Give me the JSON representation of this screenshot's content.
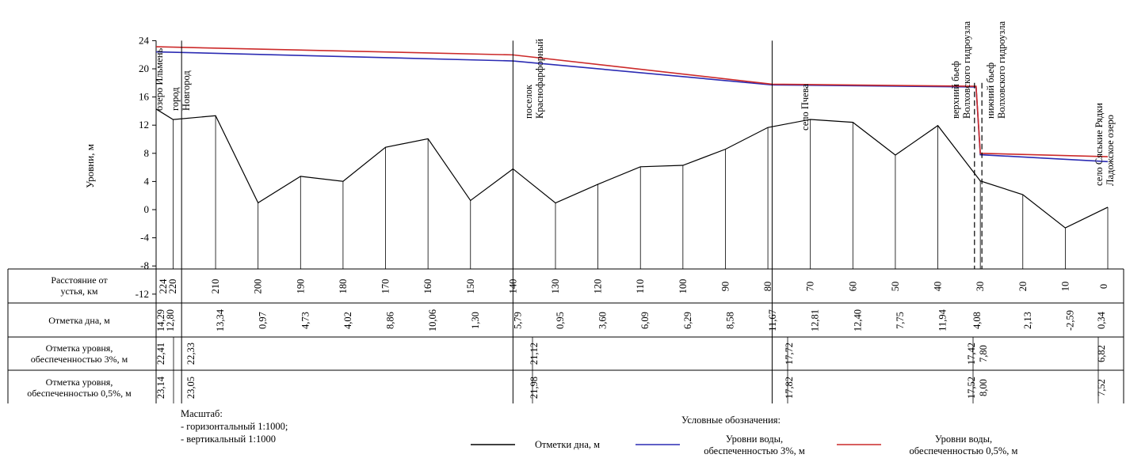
{
  "y_axis": {
    "label": "Уровни, м",
    "ticks": [
      "24",
      "20",
      "16",
      "12",
      "8",
      "4",
      "0",
      "-4",
      "-8",
      "-12"
    ]
  },
  "places": [
    {
      "lines": [
        "озеро Ильмень"
      ]
    },
    {
      "lines": [
        "город",
        "Новгород"
      ]
    },
    {
      "lines": [
        "поселок",
        "Краснофарфорный"
      ]
    },
    {
      "lines": [
        "село Пчева"
      ]
    },
    {
      "lines": [
        "верхний бьеф",
        "Волховского гидроузла"
      ]
    },
    {
      "lines": [
        "нижний бьеф",
        "Волховского гидроузла"
      ]
    },
    {
      "lines": [
        "село Сяськие Рядки",
        "Ладожское озеро"
      ]
    }
  ],
  "table": {
    "rows": [
      {
        "label": "Расстояние от\nустья, км"
      },
      {
        "label": "Отметка дна, м"
      },
      {
        "label": "Отметка уровня,\nобеспеченностью 3%, м"
      },
      {
        "label": "Отметка уровня,\nобеспеченностью 0,5%, м"
      }
    ],
    "distance_labels": [
      "224",
      "220",
      "210",
      "200",
      "190",
      "180",
      "170",
      "160",
      "150",
      "140",
      "130",
      "120",
      "110",
      "100",
      "90",
      "80",
      "70",
      "60",
      "50",
      "40",
      "30",
      "20",
      "10",
      "0"
    ],
    "bottom_labels": [
      "14,29",
      "12,80",
      "13,34",
      "0,97",
      "4,73",
      "4,02",
      "8,86",
      "10,06",
      "1,30",
      "5,79",
      "0,95",
      "3,60",
      "6,09",
      "6,29",
      "8,58",
      "11,67",
      "12,81",
      "12,40",
      "7,75",
      "11,94",
      "4,08",
      "2,13",
      "-2,59",
      "0,34"
    ],
    "level3_labels": [
      "22,41",
      "22,33",
      "21,12",
      "17,72",
      "17,42",
      "7,80",
      "6,82"
    ],
    "level05_labels": [
      "23,14",
      "23,05",
      "21,98",
      "17,82",
      "17,52",
      "8,00",
      "7,52"
    ]
  },
  "footer": {
    "scale_title": "Масштаб:",
    "scale_h": "- горизонтальный 1:1000;",
    "scale_v": "- вертикальный 1:1000",
    "legend_title": "Условные обозначения:",
    "legend": [
      {
        "label": "Отметки дна, м",
        "color": "#000000"
      },
      {
        "label": "Уровни воды,\nобеспеченностью 3%, м",
        "color": "#2b2bb3"
      },
      {
        "label": "Уровни воды,\nобеспеченностью 0,5%, м",
        "color": "#cc2a2a"
      }
    ]
  },
  "chart_data": {
    "type": "line",
    "xlabel": "",
    "ylabel": "Уровни, м",
    "ylim": [
      -12,
      24
    ],
    "x_reversed": true,
    "series": [
      {
        "name": "Отметки дна, м",
        "color": "#000000",
        "x": [
          224,
          220,
          210,
          200,
          190,
          180,
          170,
          160,
          150,
          140,
          130,
          120,
          110,
          100,
          90,
          80,
          70,
          60,
          50,
          40,
          30,
          20,
          10,
          0
        ],
        "values": [
          14.29,
          12.8,
          13.34,
          0.97,
          4.73,
          4.02,
          8.86,
          10.06,
          1.3,
          5.79,
          0.95,
          3.6,
          6.09,
          6.29,
          8.58,
          11.67,
          12.81,
          12.4,
          7.75,
          11.94,
          4.08,
          2.13,
          -2.59,
          0.34
        ]
      },
      {
        "name": "Уровни воды, обеспеченностью 3%, м",
        "color": "#2b2bb3",
        "x": [
          224,
          218,
          140,
          79,
          31,
          30,
          0
        ],
        "values": [
          22.41,
          22.33,
          21.12,
          17.72,
          17.42,
          7.8,
          6.82
        ]
      },
      {
        "name": "Уровни воды, обеспеченностью 0,5%, м",
        "color": "#cc2a2a",
        "x": [
          224,
          218,
          140,
          79,
          31,
          30,
          0
        ],
        "values": [
          23.14,
          23.05,
          21.98,
          17.82,
          17.52,
          8.0,
          7.52
        ]
      }
    ]
  }
}
